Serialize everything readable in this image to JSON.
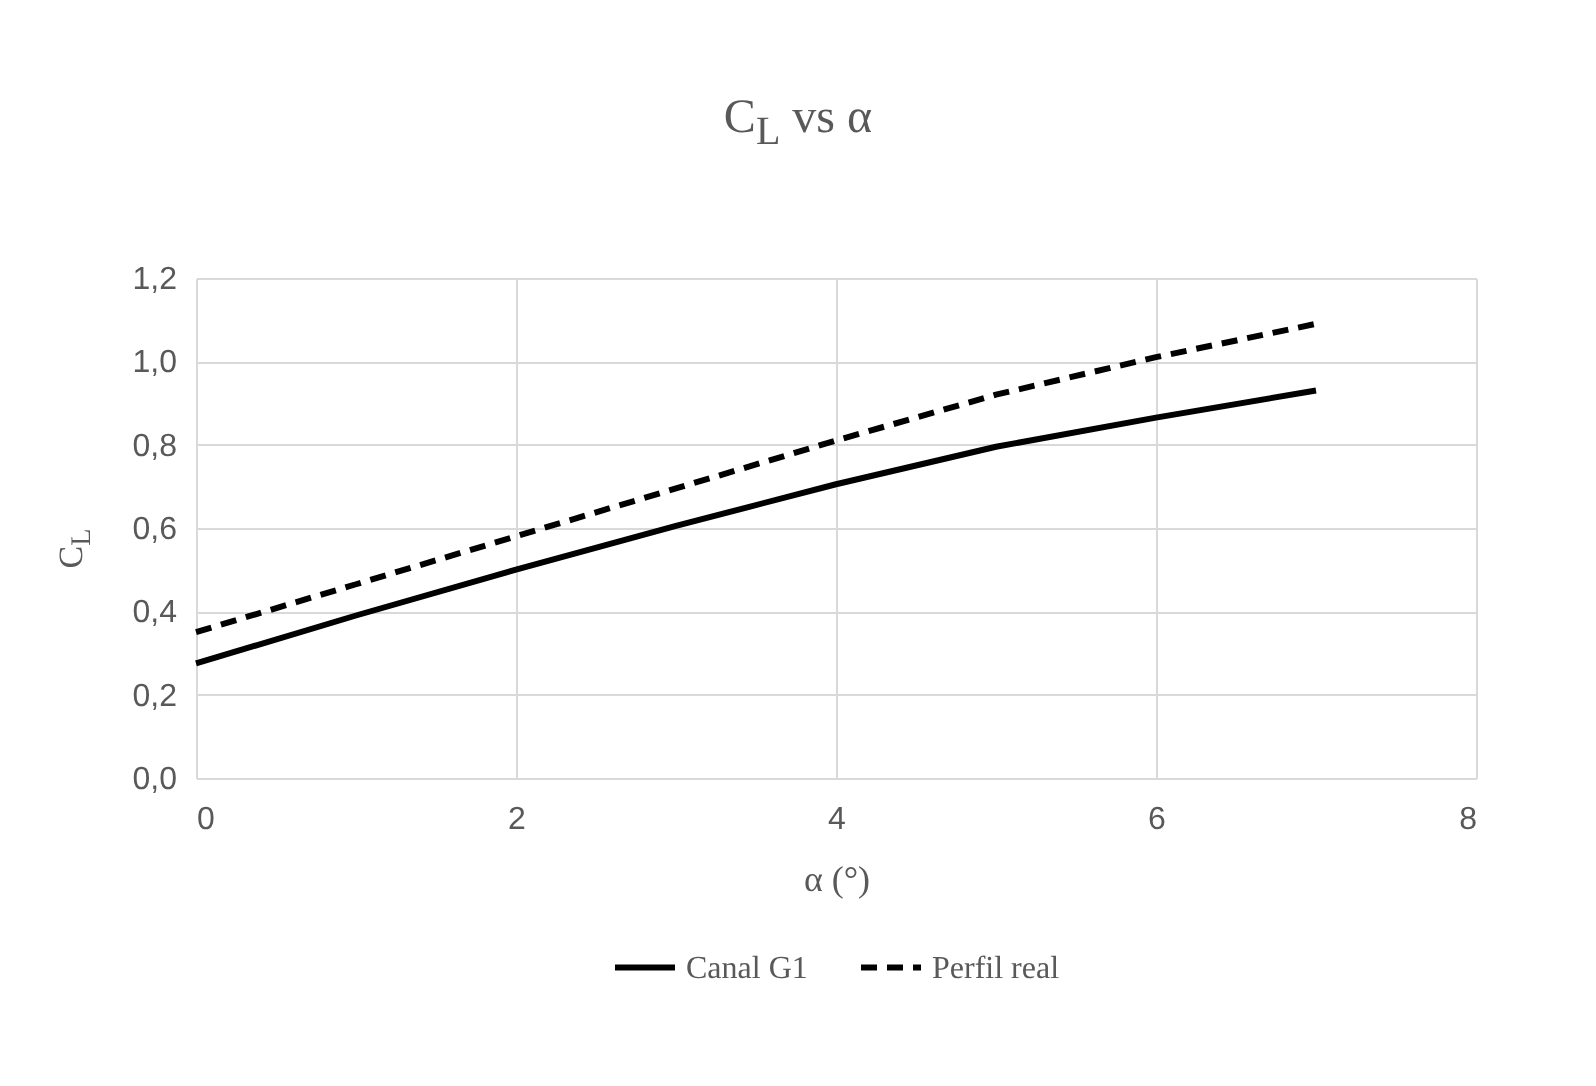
{
  "chart_data": {
    "type": "line",
    "title": "C$_{L}$ vs α",
    "xlabel": "α (°)",
    "ylabel": "C$_{L}$",
    "x": [
      0,
      1,
      2,
      3,
      4,
      5,
      6,
      7
    ],
    "series": [
      {
        "name": "Canal G1",
        "color": "#000000",
        "line_style": "solid",
        "values": [
          0.275,
          0.39,
          0.5,
          0.605,
          0.705,
          0.795,
          0.865,
          0.93
        ]
      },
      {
        "name": "Perfil real",
        "color": "#000000",
        "line_style": "dashed",
        "values": [
          0.35,
          0.465,
          0.58,
          0.695,
          0.81,
          0.92,
          1.01,
          1.09
        ]
      }
    ],
    "xlim": [
      0,
      8
    ],
    "xticks": [
      0,
      2,
      4,
      6,
      8
    ],
    "ylim": [
      0,
      1.2
    ],
    "yticks": [
      {
        "value": 0,
        "label": "0,0"
      },
      {
        "value": 0.2,
        "label": "0,2"
      },
      {
        "value": 0.4,
        "label": "0,4"
      },
      {
        "value": 0.6,
        "label": "0,6"
      },
      {
        "value": 0.8,
        "label": "0,8"
      },
      {
        "value": 1.0,
        "label": "1,0"
      },
      {
        "value": 1.2,
        "label": "1,2"
      }
    ],
    "grid": true,
    "legend": "bottom",
    "marker": "none"
  }
}
